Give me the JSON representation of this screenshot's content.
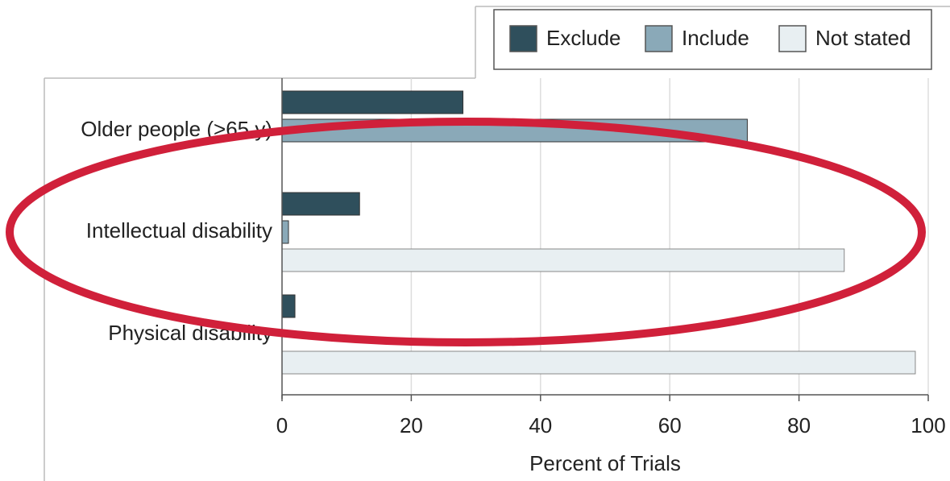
{
  "chart_data": {
    "type": "barh",
    "categories": [
      "Older people (>65 y)",
      "Intellectual disability",
      "Physical disability"
    ],
    "series": [
      {
        "name": "Exclude",
        "color": "#2f4f5c",
        "values": [
          28,
          12,
          2
        ]
      },
      {
        "name": "Include",
        "color": "#8aa9b8",
        "values": [
          72,
          1,
          0
        ]
      },
      {
        "name": "Not stated",
        "color": "#e8eff2",
        "values": [
          0,
          87,
          98
        ]
      }
    ],
    "xlim": [
      0,
      100
    ],
    "xticks": [
      0,
      20,
      40,
      60,
      80,
      100
    ],
    "xlabel": "Percent of Trials",
    "grid": true,
    "legend": "top-right"
  }
}
